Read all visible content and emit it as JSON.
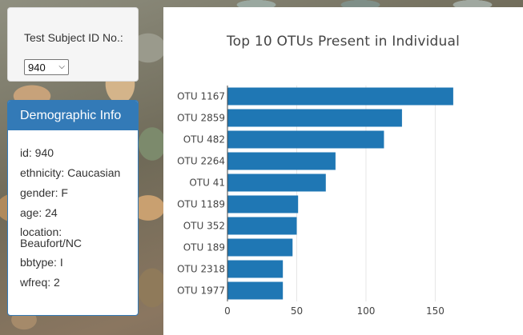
{
  "selector": {
    "label": "Test Subject ID No.:",
    "selected": "940"
  },
  "demographics": {
    "title": "Demographic Info",
    "rows": [
      "id: 940",
      "ethnicity: Caucasian",
      "gender: F",
      "age: 24",
      "location: Beaufort/NC",
      "bbtype: I",
      "wfreq: 2"
    ]
  },
  "colors": {
    "accent": "#337ab7",
    "bar": "#1f77b4"
  },
  "chart_data": {
    "type": "bar",
    "orientation": "horizontal",
    "title": "Top 10 OTUs Present in Individual",
    "categories": [
      "OTU 1167",
      "OTU 2859",
      "OTU 482",
      "OTU 2264",
      "OTU 41",
      "OTU 1189",
      "OTU 352",
      "OTU 189",
      "OTU 2318",
      "OTU 1977"
    ],
    "values": [
      163,
      126,
      113,
      78,
      71,
      51,
      50,
      47,
      40,
      40
    ],
    "xlim": [
      0,
      170
    ],
    "xticks": [
      0,
      50,
      100,
      150
    ],
    "grid": true
  }
}
